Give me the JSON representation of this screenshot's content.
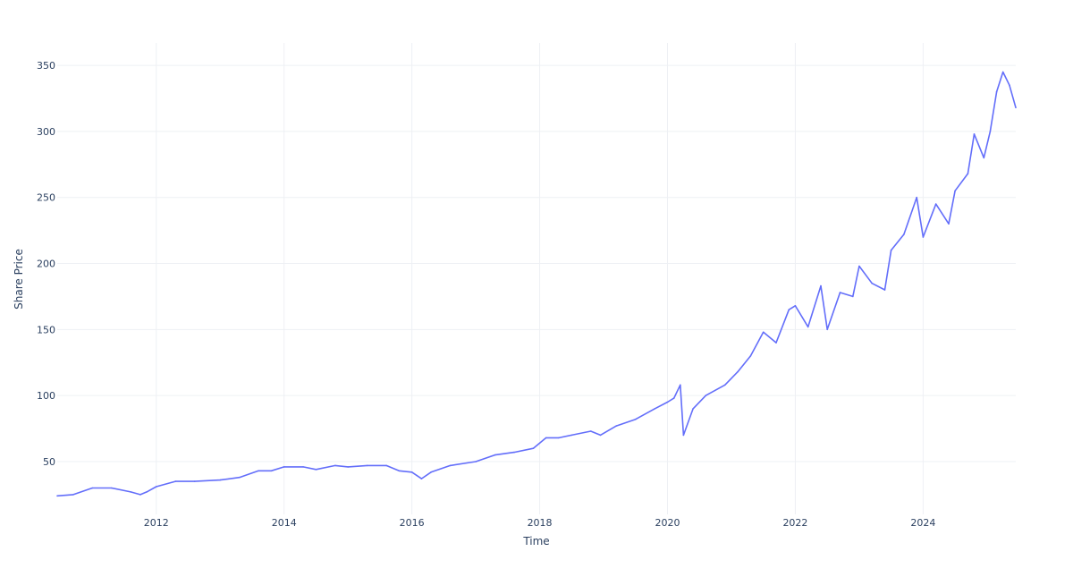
{
  "chart_data": {
    "type": "line",
    "title": "",
    "xlabel": "Time",
    "ylabel": "Share Price",
    "xlim": [
      2010.45,
      2025.45
    ],
    "ylim": [
      10,
      367
    ],
    "grid": true,
    "legend": "none",
    "x_ticks": [
      2012,
      2014,
      2016,
      2018,
      2020,
      2022,
      2024
    ],
    "x_tick_labels": [
      "2012",
      "2014",
      "2016",
      "2018",
      "2020",
      "2022",
      "2024"
    ],
    "y_ticks": [
      50,
      100,
      150,
      200,
      250,
      300,
      350
    ],
    "y_tick_labels": [
      "50",
      "100",
      "150",
      "200",
      "250",
      "300",
      "350"
    ],
    "series": [
      {
        "color": "#636efa",
        "x": [
          2010.45,
          2010.7,
          2011.0,
          2011.3,
          2011.6,
          2011.75,
          2011.85,
          2012.0,
          2012.3,
          2012.6,
          2013.0,
          2013.3,
          2013.6,
          2013.8,
          2014.0,
          2014.3,
          2014.5,
          2014.8,
          2015.0,
          2015.3,
          2015.6,
          2015.8,
          2016.0,
          2016.15,
          2016.3,
          2016.6,
          2017.0,
          2017.3,
          2017.6,
          2017.9,
          2018.1,
          2018.3,
          2018.5,
          2018.8,
          2018.95,
          2019.2,
          2019.5,
          2019.8,
          2020.0,
          2020.1,
          2020.2,
          2020.25,
          2020.4,
          2020.6,
          2020.9,
          2021.1,
          2021.3,
          2021.5,
          2021.7,
          2021.9,
          2022.0,
          2022.2,
          2022.4,
          2022.5,
          2022.7,
          2022.9,
          2023.0,
          2023.2,
          2023.4,
          2023.5,
          2023.7,
          2023.9,
          2024.0,
          2024.2,
          2024.4,
          2024.5,
          2024.7,
          2024.8,
          2024.95,
          2025.05,
          2025.15,
          2025.25,
          2025.35,
          2025.45
        ],
        "values": [
          24,
          25,
          30,
          30,
          27,
          25,
          27,
          31,
          35,
          35,
          36,
          38,
          43,
          43,
          46,
          46,
          44,
          47,
          46,
          47,
          47,
          43,
          42,
          37,
          42,
          47,
          50,
          55,
          57,
          60,
          68,
          68,
          70,
          73,
          70,
          77,
          82,
          90,
          95,
          98,
          108,
          70,
          90,
          100,
          108,
          118,
          130,
          148,
          140,
          165,
          168,
          152,
          183,
          150,
          178,
          175,
          198,
          185,
          180,
          210,
          222,
          250,
          220,
          245,
          230,
          255,
          268,
          298,
          280,
          300,
          330,
          345,
          335,
          318
        ]
      }
    ]
  }
}
